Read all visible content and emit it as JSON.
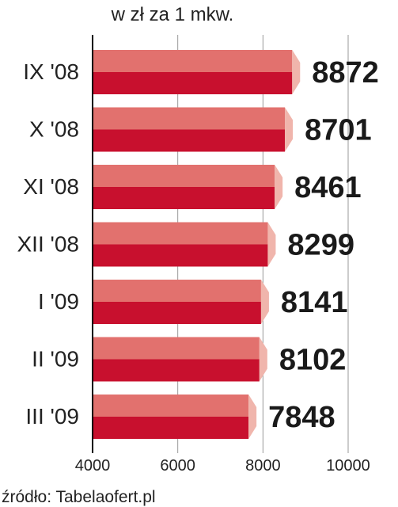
{
  "chart_data": {
    "type": "bar",
    "orientation": "horizontal",
    "title": "",
    "subtitle": "w zł za 1 mkw.",
    "xlabel": "",
    "ylabel": "",
    "categories": [
      "IX '08",
      "X '08",
      "XI '08",
      "XII '08",
      "I '09",
      "II '09",
      "III '09"
    ],
    "values": [
      8872,
      8701,
      8461,
      8299,
      8141,
      8102,
      7848
    ],
    "value_labels": [
      "8872",
      "8701",
      "8461",
      "8299",
      "8141",
      "8102",
      "7848"
    ],
    "xlim": [
      4000,
      10000
    ],
    "x_ticks": [
      4000,
      6000,
      8000,
      10000
    ],
    "x_tick_labels": [
      "4000",
      "6000",
      "8000",
      "10000"
    ],
    "grid": true,
    "legend": "none",
    "source": "źródło: Tabelaofert.pl",
    "colors": {
      "bar_top": "#e2716e",
      "bar_bottom": "#c8102e",
      "bar_end": "#f0b5ac",
      "grid": "#999999",
      "axis": "#000000",
      "text": "#222222"
    }
  }
}
